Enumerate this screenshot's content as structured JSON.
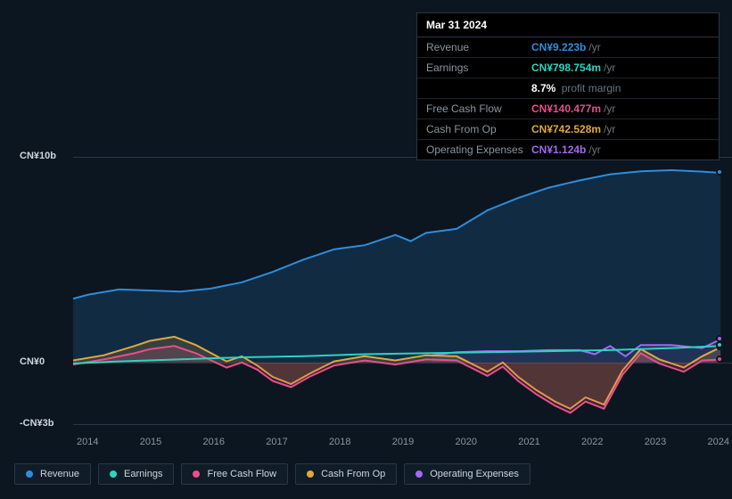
{
  "tooltip": {
    "date": "Mar 31 2024",
    "rows": [
      {
        "label": "Revenue",
        "value": "CN¥9.223b",
        "unit": "/yr",
        "color": "#2e8ddd"
      },
      {
        "label": "Earnings",
        "value": "CN¥798.754m",
        "unit": "/yr",
        "color": "#2dd4bf"
      },
      {
        "label": "_margin",
        "pct": "8.7%",
        "text": "profit margin"
      },
      {
        "label": "Free Cash Flow",
        "value": "CN¥140.477m",
        "unit": "/yr",
        "color": "#e94f8a"
      },
      {
        "label": "Cash From Op",
        "value": "CN¥742.528m",
        "unit": "/yr",
        "color": "#e0a93e"
      },
      {
        "label": "Operating Expenses",
        "value": "CN¥1.124b",
        "unit": "/yr",
        "color": "#a06af0"
      }
    ]
  },
  "chart": {
    "type": "area-line",
    "background_color": "#0b1620",
    "grid_color": "#2a3642",
    "label_color": "#cfd6dc",
    "label_fontsize": 11,
    "y_domain": [
      -3,
      10
    ],
    "y_ticks": [
      {
        "v": 10,
        "label": "CN¥10b"
      },
      {
        "v": 0,
        "label": "CN¥0"
      },
      {
        "v": -3,
        "label": "-CN¥3b"
      }
    ],
    "x_domain": [
      2013.75,
      2024.5
    ],
    "x_ticks": [
      "2014",
      "2015",
      "2016",
      "2017",
      "2018",
      "2019",
      "2020",
      "2021",
      "2022",
      "2023",
      "2024"
    ],
    "series": [
      {
        "name": "Revenue",
        "color": "#2e8ddd",
        "fill_opacity": 0.18,
        "points": [
          [
            2013.75,
            3.1
          ],
          [
            2014.0,
            3.3
          ],
          [
            2014.5,
            3.55
          ],
          [
            2015.0,
            3.5
          ],
          [
            2015.5,
            3.45
          ],
          [
            2016.0,
            3.6
          ],
          [
            2016.5,
            3.9
          ],
          [
            2017.0,
            4.4
          ],
          [
            2017.5,
            5.0
          ],
          [
            2018.0,
            5.5
          ],
          [
            2018.5,
            5.7
          ],
          [
            2019.0,
            6.2
          ],
          [
            2019.25,
            5.9
          ],
          [
            2019.5,
            6.3
          ],
          [
            2020.0,
            6.5
          ],
          [
            2020.5,
            7.4
          ],
          [
            2021.0,
            8.0
          ],
          [
            2021.5,
            8.5
          ],
          [
            2022.0,
            8.85
          ],
          [
            2022.5,
            9.15
          ],
          [
            2023.0,
            9.3
          ],
          [
            2023.5,
            9.35
          ],
          [
            2024.0,
            9.28
          ],
          [
            2024.3,
            9.22
          ]
        ]
      },
      {
        "name": "Operating Expenses",
        "color": "#a06af0",
        "fill_opacity": 0.12,
        "points": [
          [
            2019.6,
            0.35
          ],
          [
            2020.0,
            0.5
          ],
          [
            2020.5,
            0.55
          ],
          [
            2021.0,
            0.55
          ],
          [
            2021.5,
            0.6
          ],
          [
            2022.0,
            0.6
          ],
          [
            2022.25,
            0.4
          ],
          [
            2022.5,
            0.8
          ],
          [
            2022.75,
            0.3
          ],
          [
            2023.0,
            0.85
          ],
          [
            2023.5,
            0.85
          ],
          [
            2024.0,
            0.7
          ],
          [
            2024.3,
            1.12
          ]
        ]
      },
      {
        "name": "Cash From Op",
        "color": "#e0a93e",
        "fill_opacity": 0.18,
        "points": [
          [
            2013.75,
            0.1
          ],
          [
            2014.25,
            0.35
          ],
          [
            2014.75,
            0.8
          ],
          [
            2015.0,
            1.05
          ],
          [
            2015.4,
            1.25
          ],
          [
            2015.75,
            0.85
          ],
          [
            2016.25,
            0.05
          ],
          [
            2016.5,
            0.3
          ],
          [
            2016.75,
            -0.15
          ],
          [
            2017.0,
            -0.7
          ],
          [
            2017.3,
            -1.05
          ],
          [
            2017.6,
            -0.55
          ],
          [
            2018.0,
            0.05
          ],
          [
            2018.5,
            0.3
          ],
          [
            2019.0,
            0.1
          ],
          [
            2019.5,
            0.35
          ],
          [
            2020.0,
            0.3
          ],
          [
            2020.5,
            -0.45
          ],
          [
            2020.75,
            0.0
          ],
          [
            2021.0,
            -0.7
          ],
          [
            2021.3,
            -1.35
          ],
          [
            2021.6,
            -1.9
          ],
          [
            2021.85,
            -2.25
          ],
          [
            2022.1,
            -1.7
          ],
          [
            2022.4,
            -2.05
          ],
          [
            2022.7,
            -0.4
          ],
          [
            2023.0,
            0.65
          ],
          [
            2023.3,
            0.15
          ],
          [
            2023.7,
            -0.25
          ],
          [
            2024.0,
            0.3
          ],
          [
            2024.3,
            0.74
          ]
        ]
      },
      {
        "name": "Free Cash Flow",
        "color": "#e94f8a",
        "fill_opacity": 0.18,
        "points": [
          [
            2013.75,
            -0.1
          ],
          [
            2014.25,
            0.15
          ],
          [
            2014.75,
            0.45
          ],
          [
            2015.0,
            0.65
          ],
          [
            2015.4,
            0.8
          ],
          [
            2015.75,
            0.45
          ],
          [
            2016.25,
            -0.25
          ],
          [
            2016.5,
            0.0
          ],
          [
            2016.75,
            -0.35
          ],
          [
            2017.0,
            -0.9
          ],
          [
            2017.3,
            -1.2
          ],
          [
            2017.6,
            -0.7
          ],
          [
            2018.0,
            -0.15
          ],
          [
            2018.5,
            0.1
          ],
          [
            2019.0,
            -0.1
          ],
          [
            2019.5,
            0.15
          ],
          [
            2020.0,
            0.1
          ],
          [
            2020.5,
            -0.65
          ],
          [
            2020.75,
            -0.2
          ],
          [
            2021.0,
            -0.9
          ],
          [
            2021.3,
            -1.55
          ],
          [
            2021.6,
            -2.1
          ],
          [
            2021.85,
            -2.45
          ],
          [
            2022.1,
            -1.9
          ],
          [
            2022.4,
            -2.25
          ],
          [
            2022.7,
            -0.6
          ],
          [
            2023.0,
            0.45
          ],
          [
            2023.3,
            -0.05
          ],
          [
            2023.7,
            -0.45
          ],
          [
            2024.0,
            0.1
          ],
          [
            2024.3,
            0.14
          ]
        ]
      },
      {
        "name": "Earnings",
        "color": "#2dd4bf",
        "fill_opacity": 0.0,
        "points": [
          [
            2013.75,
            -0.05
          ],
          [
            2014.5,
            0.05
          ],
          [
            2015.5,
            0.15
          ],
          [
            2016.5,
            0.25
          ],
          [
            2017.5,
            0.3
          ],
          [
            2018.5,
            0.4
          ],
          [
            2019.5,
            0.45
          ],
          [
            2020.5,
            0.5
          ],
          [
            2021.5,
            0.55
          ],
          [
            2022.5,
            0.6
          ],
          [
            2023.5,
            0.7
          ],
          [
            2024.3,
            0.8
          ]
        ]
      }
    ],
    "legend": [
      {
        "name": "Revenue",
        "color": "#2e8ddd"
      },
      {
        "name": "Earnings",
        "color": "#2dd4bf"
      },
      {
        "name": "Free Cash Flow",
        "color": "#e94f8a"
      },
      {
        "name": "Cash From Op",
        "color": "#e0a93e"
      },
      {
        "name": "Operating Expenses",
        "color": "#a06af0"
      }
    ]
  }
}
